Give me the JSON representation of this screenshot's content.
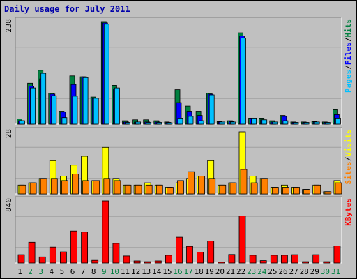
{
  "window": {
    "title": "Daily usage for July 2011"
  },
  "colors": {
    "background": "#c0c0c0",
    "plot_bg": "#c0c0c0",
    "grid": "#a0a0a0",
    "title": "#0000aa",
    "hits": "#008040",
    "files": "#0000ff",
    "pages": "#00c0ff",
    "visits": "#ffff00",
    "sites": "#ff8000",
    "kbytes": "#ff0000",
    "weekend_day": "#008040",
    "weekday": "#000000"
  },
  "chart_data": [
    {
      "type": "bar",
      "panel": "hits-files-pages",
      "title": "Daily usage for July 2011",
      "ylabel_max": "238",
      "ylim": [
        0,
        238
      ],
      "legend": [
        "Pages",
        "Files",
        "Hits"
      ],
      "legend_separator": "/",
      "categories": [
        "1",
        "2",
        "3",
        "4",
        "5",
        "6",
        "7",
        "8",
        "9",
        "10",
        "11",
        "12",
        "13",
        "14",
        "15",
        "16",
        "17",
        "18",
        "19",
        "20",
        "21",
        "22",
        "23",
        "24",
        "25",
        "26",
        "27",
        "28",
        "29",
        "30",
        "31"
      ],
      "series": [
        {
          "name": "Hits",
          "color_key": "hits",
          "values": [
            12,
            95,
            125,
            72,
            30,
            112,
            110,
            63,
            238,
            90,
            8,
            10,
            10,
            8,
            5,
            80,
            42,
            30,
            72,
            6,
            8,
            212,
            14,
            14,
            8,
            20,
            5,
            5,
            6,
            5,
            35
          ]
        },
        {
          "name": "Files",
          "color_key": "files",
          "values": [
            8,
            88,
            105,
            70,
            28,
            92,
            110,
            60,
            235,
            82,
            5,
            5,
            5,
            5,
            4,
            50,
            30,
            20,
            70,
            5,
            6,
            205,
            14,
            10,
            5,
            18,
            4,
            4,
            5,
            4,
            22
          ]
        },
        {
          "name": "Pages",
          "color_key": "pages",
          "values": [
            8,
            84,
            118,
            66,
            15,
            65,
            108,
            60,
            232,
            84,
            4,
            5,
            4,
            4,
            3,
            14,
            18,
            8,
            68,
            5,
            5,
            200,
            14,
            10,
            5,
            8,
            4,
            4,
            5,
            4,
            14
          ]
        }
      ]
    },
    {
      "type": "bar",
      "panel": "sites-visits",
      "ylabel_max": "28",
      "ylim": [
        0,
        28
      ],
      "legend": [
        "Sites",
        "Visits"
      ],
      "legend_separator": "/",
      "categories": [
        "1",
        "2",
        "3",
        "4",
        "5",
        "6",
        "7",
        "8",
        "9",
        "10",
        "11",
        "12",
        "13",
        "14",
        "15",
        "16",
        "17",
        "18",
        "19",
        "20",
        "21",
        "22",
        "23",
        "24",
        "25",
        "26",
        "27",
        "28",
        "29",
        "30",
        "31"
      ],
      "series": [
        {
          "name": "Visits",
          "color_key": "visits",
          "values": [
            4,
            5,
            7,
            15,
            8,
            13,
            17,
            6,
            21,
            7,
            4,
            4,
            5,
            4,
            3,
            5,
            7,
            8,
            15,
            4,
            5,
            28,
            8,
            7,
            3,
            4,
            3,
            2,
            4,
            1,
            6
          ]
        },
        {
          "name": "Sites",
          "color_key": "sites",
          "values": [
            4,
            5,
            7,
            7,
            6,
            9,
            6,
            6,
            7,
            6,
            4,
            4,
            4,
            4,
            3,
            6,
            10,
            8,
            7,
            4,
            5,
            11,
            5,
            7,
            3,
            3,
            3,
            2,
            4,
            1,
            5
          ]
        }
      ]
    },
    {
      "type": "bar",
      "panel": "kbytes",
      "ylabel_max": "840",
      "ylim": [
        0,
        840
      ],
      "legend": [
        "KBytes"
      ],
      "categories": [
        "1",
        "2",
        "3",
        "4",
        "5",
        "6",
        "7",
        "8",
        "9",
        "10",
        "11",
        "12",
        "13",
        "14",
        "15",
        "16",
        "17",
        "18",
        "19",
        "20",
        "21",
        "22",
        "23",
        "24",
        "25",
        "26",
        "27",
        "28",
        "29",
        "30",
        "31"
      ],
      "series": [
        {
          "name": "KBytes",
          "color_key": "kbytes",
          "values": [
            112,
            280,
            82,
            215,
            150,
            432,
            418,
            36,
            840,
            265,
            95,
            28,
            18,
            28,
            105,
            348,
            225,
            145,
            298,
            14,
            115,
            638,
            105,
            32,
            105,
            105,
            112,
            18,
            112,
            18,
            230
          ]
        }
      ]
    }
  ],
  "weekend_days": [
    2,
    3,
    9,
    10,
    16,
    17,
    23,
    24,
    30,
    31
  ]
}
